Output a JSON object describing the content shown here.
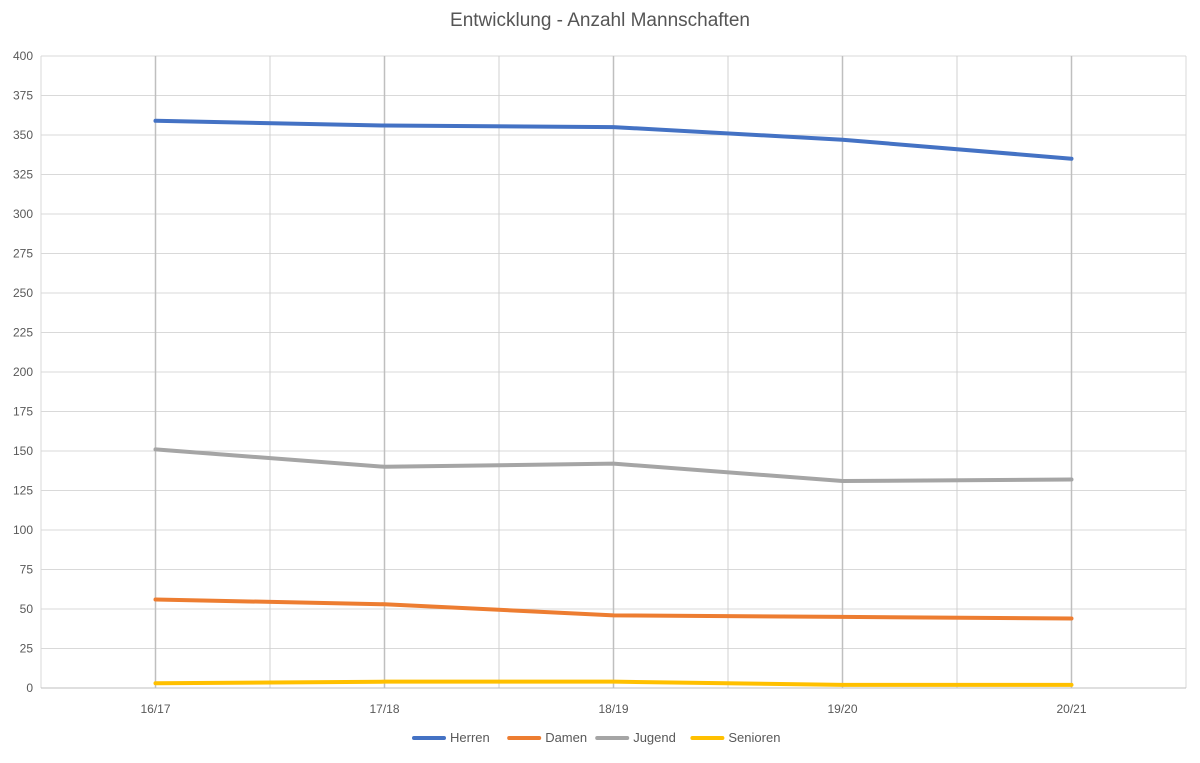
{
  "chart_data": {
    "type": "line",
    "title": "Entwicklung - Anzahl Mannschaften",
    "categories": [
      "16/17",
      "17/18",
      "18/19",
      "19/20",
      "20/21"
    ],
    "ylim": [
      0,
      400
    ],
    "yticks": [
      0,
      25,
      50,
      75,
      100,
      125,
      150,
      175,
      200,
      225,
      250,
      275,
      300,
      325,
      350,
      375,
      400
    ],
    "grid": true,
    "legend_position": "bottom",
    "series": [
      {
        "name": "Herren",
        "color": "#4472C4",
        "values": [
          359,
          356,
          355,
          347,
          335
        ]
      },
      {
        "name": "Damen",
        "color": "#ED7D31",
        "values": [
          56,
          53,
          46,
          45,
          44
        ]
      },
      {
        "name": "Jugend",
        "color": "#A5A5A5",
        "values": [
          151,
          140,
          142,
          131,
          132
        ]
      },
      {
        "name": "Senioren",
        "color": "#FFC000",
        "values": [
          3,
          4,
          4,
          2,
          2
        ]
      }
    ]
  }
}
